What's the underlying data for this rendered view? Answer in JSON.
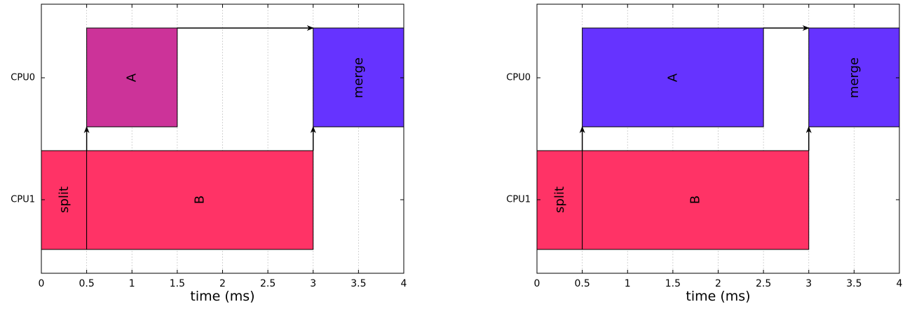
{
  "panels": [
    {
      "cpus": [
        "CPU0",
        "CPU1"
      ],
      "x_ticks": [
        "0",
        "0.5",
        "1",
        "1.5",
        "2",
        "2.5",
        "3",
        "3.5",
        "4"
      ],
      "xlabel": "time (ms)",
      "tasks": [
        {
          "label": "split",
          "cpu": "CPU1",
          "start": 0,
          "end": 0.5,
          "color": "#FF3366"
        },
        {
          "label": "B",
          "cpu": "CPU1",
          "start": 0.5,
          "end": 3,
          "color": "#FF3366"
        },
        {
          "label": "A",
          "cpu": "CPU0",
          "start": 0.5,
          "end": 1.5,
          "color": "#CC3399"
        },
        {
          "label": "merge",
          "cpu": "CPU0",
          "start": 3,
          "end": 4,
          "color": "#6633FF"
        }
      ],
      "dependencies": [
        {
          "kind": "cross",
          "time": 0.5,
          "from_cpu": "CPU1",
          "to_cpu": "CPU0"
        },
        {
          "kind": "cross",
          "time": 3,
          "from_cpu": "CPU1",
          "to_cpu": "CPU0"
        },
        {
          "kind": "same",
          "cpu": "CPU0",
          "from_time": 1.5,
          "to_time": 3
        }
      ]
    },
    {
      "cpus": [
        "CPU0",
        "CPU1"
      ],
      "x_ticks": [
        "0",
        "0.5",
        "1",
        "1.5",
        "2",
        "2.5",
        "3",
        "3.5",
        "4"
      ],
      "xlabel": "time (ms)",
      "tasks": [
        {
          "label": "split",
          "cpu": "CPU1",
          "start": 0,
          "end": 0.5,
          "color": "#FF3366"
        },
        {
          "label": "B",
          "cpu": "CPU1",
          "start": 0.5,
          "end": 3,
          "color": "#FF3366"
        },
        {
          "label": "A",
          "cpu": "CPU0",
          "start": 0.5,
          "end": 2.5,
          "color": "#6633FF"
        },
        {
          "label": "merge",
          "cpu": "CPU0",
          "start": 3,
          "end": 4,
          "color": "#6633FF"
        }
      ],
      "dependencies": [
        {
          "kind": "cross",
          "time": 0.5,
          "from_cpu": "CPU1",
          "to_cpu": "CPU0"
        },
        {
          "kind": "cross",
          "time": 3,
          "from_cpu": "CPU1",
          "to_cpu": "CPU0"
        },
        {
          "kind": "same",
          "cpu": "CPU0",
          "from_time": 2.5,
          "to_time": 3
        }
      ]
    }
  ]
}
